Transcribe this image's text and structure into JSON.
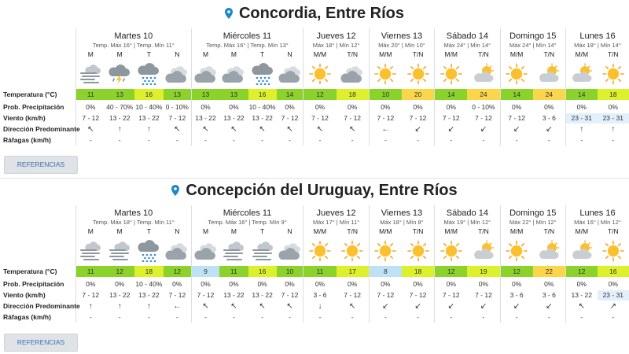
{
  "locations": [
    {
      "name": "Concordia, Entre Ríos",
      "days": [
        {
          "name": "Martes 10",
          "temps": "Temp. Máx 16° | Temp. Mín 11°",
          "periods": [
            "M",
            "M",
            "T",
            "N"
          ],
          "icons": [
            "wind-cloud-icon",
            "storm-icon",
            "rain-icon",
            "cloudy-icon"
          ],
          "temp": [
            "11",
            "13",
            "16",
            "13"
          ],
          "temp_colors": [
            "g",
            "g",
            "y",
            "g"
          ],
          "precip": [
            "0%",
            "40 - 70%",
            "10 - 40%",
            "0 - 10%"
          ],
          "wind": [
            "7 - 12",
            "13 - 22",
            "13 - 22",
            "7 - 12"
          ],
          "dir": [
            "↖",
            "↑",
            "↑",
            "↖"
          ],
          "gusts": [
            "-",
            "-",
            "-",
            "-"
          ]
        },
        {
          "name": "Miércoles 11",
          "temps": "Temp. Máx 16° | Temp. Mín 13°",
          "periods": [
            "M",
            "M",
            "T",
            "N"
          ],
          "icons": [
            "cloudy-icon",
            "cloudy-icon",
            "rain-icon",
            "cloudy-icon"
          ],
          "temp": [
            "13",
            "13",
            "16",
            "14"
          ],
          "temp_colors": [
            "g",
            "g",
            "y",
            "g"
          ],
          "precip": [
            "0%",
            "0%",
            "10 - 40%",
            "0%"
          ],
          "wind": [
            "13 - 22",
            "13 - 22",
            "13 - 22",
            "7 - 12"
          ],
          "dir": [
            "↖",
            "↖",
            "↖",
            "↖"
          ],
          "gusts": [
            "-",
            "-",
            "-",
            "-"
          ]
        },
        {
          "name": "Jueves 12",
          "temps": "Máx 18° | Mín 12°",
          "periods": [
            "M/M",
            "T/N"
          ],
          "icons": [
            "sun-icon",
            "cloudy-icon"
          ],
          "temp": [
            "12",
            "18"
          ],
          "temp_colors": [
            "g",
            "y"
          ],
          "precip": [
            "0%",
            "0%"
          ],
          "wind": [
            "7 - 12",
            "7 - 12"
          ],
          "dir": [
            "↖",
            "↖"
          ],
          "gusts": [
            "-",
            "-"
          ]
        },
        {
          "name": "Viernes 13",
          "temps": "Máx 20° | Mín 10°",
          "periods": [
            "M/M",
            "T/N"
          ],
          "icons": [
            "sun-icon",
            "sun-icon"
          ],
          "temp": [
            "10",
            "20"
          ],
          "temp_colors": [
            "g",
            "o"
          ],
          "precip": [
            "0%",
            "0%"
          ],
          "wind": [
            "7 - 12",
            "7 - 12"
          ],
          "dir": [
            "←",
            "↙"
          ],
          "gusts": [
            "-",
            "-"
          ]
        },
        {
          "name": "Sábado 14",
          "temps": "Máx 24° | Mín 14°",
          "periods": [
            "M/M",
            "T/N"
          ],
          "icons": [
            "sun-icon",
            "partly-cloudy-icon"
          ],
          "temp": [
            "14",
            "24"
          ],
          "temp_colors": [
            "g",
            "o"
          ],
          "precip": [
            "0%",
            "0 - 10%"
          ],
          "wind": [
            "7 - 12",
            "7 - 12"
          ],
          "dir": [
            "↙",
            "↙"
          ],
          "gusts": [
            "-",
            "-"
          ]
        },
        {
          "name": "Domingo 15",
          "temps": "Máx 24° | Mín 14°",
          "periods": [
            "M/M",
            "T/N"
          ],
          "icons": [
            "sun-icon",
            "partly-cloudy-icon"
          ],
          "temp": [
            "14",
            "24"
          ],
          "temp_colors": [
            "g",
            "o"
          ],
          "precip": [
            "0%",
            "0%"
          ],
          "wind": [
            "7 - 12",
            "3 - 6"
          ],
          "dir": [
            "↙",
            "↙"
          ],
          "gusts": [
            "-",
            "-"
          ]
        },
        {
          "name": "Lunes 16",
          "temps": "Máx 18° | Mín 14°",
          "periods": [
            "M/M",
            "T/N"
          ],
          "icons": [
            "partly-cloudy-icon",
            "sun-icon"
          ],
          "temp": [
            "14",
            "18"
          ],
          "temp_colors": [
            "g",
            "y"
          ],
          "precip": [
            "0%",
            "0%"
          ],
          "wind": [
            "23 - 31",
            "23 - 31"
          ],
          "wind_hi": [
            true,
            true
          ],
          "dir": [
            "↑",
            "↑"
          ],
          "gusts": [
            "-",
            "-"
          ]
        }
      ]
    },
    {
      "name": "Concepción del Uruguay, Entre Ríos",
      "days": [
        {
          "name": "Martes 10",
          "temps": "Temp. Máx 18° | Temp. Mín 11°",
          "periods": [
            "M",
            "M",
            "T",
            "N"
          ],
          "icons": [
            "wind-cloud-icon",
            "wind-cloud-icon",
            "rain-icon",
            "cloudy-icon"
          ],
          "temp": [
            "11",
            "12",
            "18",
            "12"
          ],
          "temp_colors": [
            "g",
            "g",
            "y",
            "g"
          ],
          "precip": [
            "0%",
            "0%",
            "10 - 40%",
            "0%"
          ],
          "wind": [
            "7 - 12",
            "13 - 22",
            "13 - 22",
            "7 - 12"
          ],
          "dir": [
            "↑",
            "↑",
            "↑",
            "←"
          ],
          "gusts": [
            "-",
            "-",
            "-",
            "-"
          ]
        },
        {
          "name": "Miércoles 11",
          "temps": "Temp. Máx 16° | Temp. Mín 9°",
          "periods": [
            "M",
            "M",
            "T",
            "N"
          ],
          "icons": [
            "cloudy-icon",
            "wind-cloud-icon",
            "wind-cloud-icon",
            "cloudy-icon"
          ],
          "temp": [
            "9",
            "11",
            "16",
            "10"
          ],
          "temp_colors": [
            "b",
            "g",
            "y",
            "g"
          ],
          "precip": [
            "0%",
            "0%",
            "0%",
            "0%"
          ],
          "wind": [
            "7 - 12",
            "13 - 22",
            "13 - 22",
            "7 - 12"
          ],
          "dir": [
            "↖",
            "↖",
            "↖",
            "↖"
          ],
          "gusts": [
            "-",
            "-",
            "-",
            "-"
          ]
        },
        {
          "name": "Jueves 12",
          "temps": "Máx 17° | Mín 11°",
          "periods": [
            "M/M",
            "T/N"
          ],
          "icons": [
            "sun-icon",
            "sun-icon"
          ],
          "temp": [
            "11",
            "17"
          ],
          "temp_colors": [
            "g",
            "y"
          ],
          "precip": [
            "0%",
            "0%"
          ],
          "wind": [
            "3 - 6",
            "7 - 12"
          ],
          "dir": [
            "↓",
            "↖"
          ],
          "gusts": [
            "-",
            "-"
          ]
        },
        {
          "name": "Viernes 13",
          "temps": "Máx 18° | Mín 8°",
          "periods": [
            "M/M",
            "T/N"
          ],
          "icons": [
            "sun-icon",
            "sun-icon"
          ],
          "temp": [
            "8",
            "18"
          ],
          "temp_colors": [
            "b",
            "y"
          ],
          "precip": [
            "0%",
            "0%"
          ],
          "wind": [
            "7 - 12",
            "7 - 12"
          ],
          "dir": [
            "↙",
            "↙"
          ],
          "gusts": [
            "-",
            "-"
          ]
        },
        {
          "name": "Sábado 14",
          "temps": "Máx 19° | Mín 12°",
          "periods": [
            "M/M",
            "T/N"
          ],
          "icons": [
            "sun-icon",
            "partly-cloudy-icon"
          ],
          "temp": [
            "12",
            "19"
          ],
          "temp_colors": [
            "g",
            "y"
          ],
          "precip": [
            "0%",
            "0%"
          ],
          "wind": [
            "7 - 12",
            "7 - 12"
          ],
          "dir": [
            "↙",
            "↙"
          ],
          "gusts": [
            "-",
            "-"
          ]
        },
        {
          "name": "Domingo 15",
          "temps": "Máx 22° | Mín 12°",
          "periods": [
            "M/M",
            "T/N"
          ],
          "icons": [
            "sun-icon",
            "partly-cloudy-icon"
          ],
          "temp": [
            "12",
            "22"
          ],
          "temp_colors": [
            "g",
            "o"
          ],
          "precip": [
            "0%",
            "0%"
          ],
          "wind": [
            "3 - 6",
            "3 - 6"
          ],
          "dir": [
            "↙",
            "↙"
          ],
          "gusts": [
            "-",
            "-"
          ]
        },
        {
          "name": "Lunes 16",
          "temps": "Máx 16° | Mín 12°",
          "periods": [
            "M/M",
            "T/N"
          ],
          "icons": [
            "partly-cloudy-icon",
            "sun-icon"
          ],
          "temp": [
            "12",
            "16"
          ],
          "temp_colors": [
            "g",
            "y"
          ],
          "precip": [
            "0%",
            "0%"
          ],
          "wind": [
            "13 - 22",
            "23 - 31"
          ],
          "wind_hi": [
            false,
            true
          ],
          "dir": [
            "↖",
            "↗"
          ],
          "gusts": [
            "-",
            "-"
          ]
        }
      ]
    }
  ],
  "row_labels": {
    "temp": "Temperatura (°C)",
    "precip": "Prob. Precipitación",
    "wind": "Viento (km/h)",
    "dir": "Dirección Predominante",
    "gusts": "Ráfagas (km/h)"
  },
  "button_label": "REFERENCIAS",
  "colors": {
    "green": "#8bd22a",
    "yellow": "#dcf02c",
    "orange": "#fbd64a",
    "blue": "#bfe1f5",
    "pin": "#1e88c8",
    "link": "#3c70a8"
  }
}
